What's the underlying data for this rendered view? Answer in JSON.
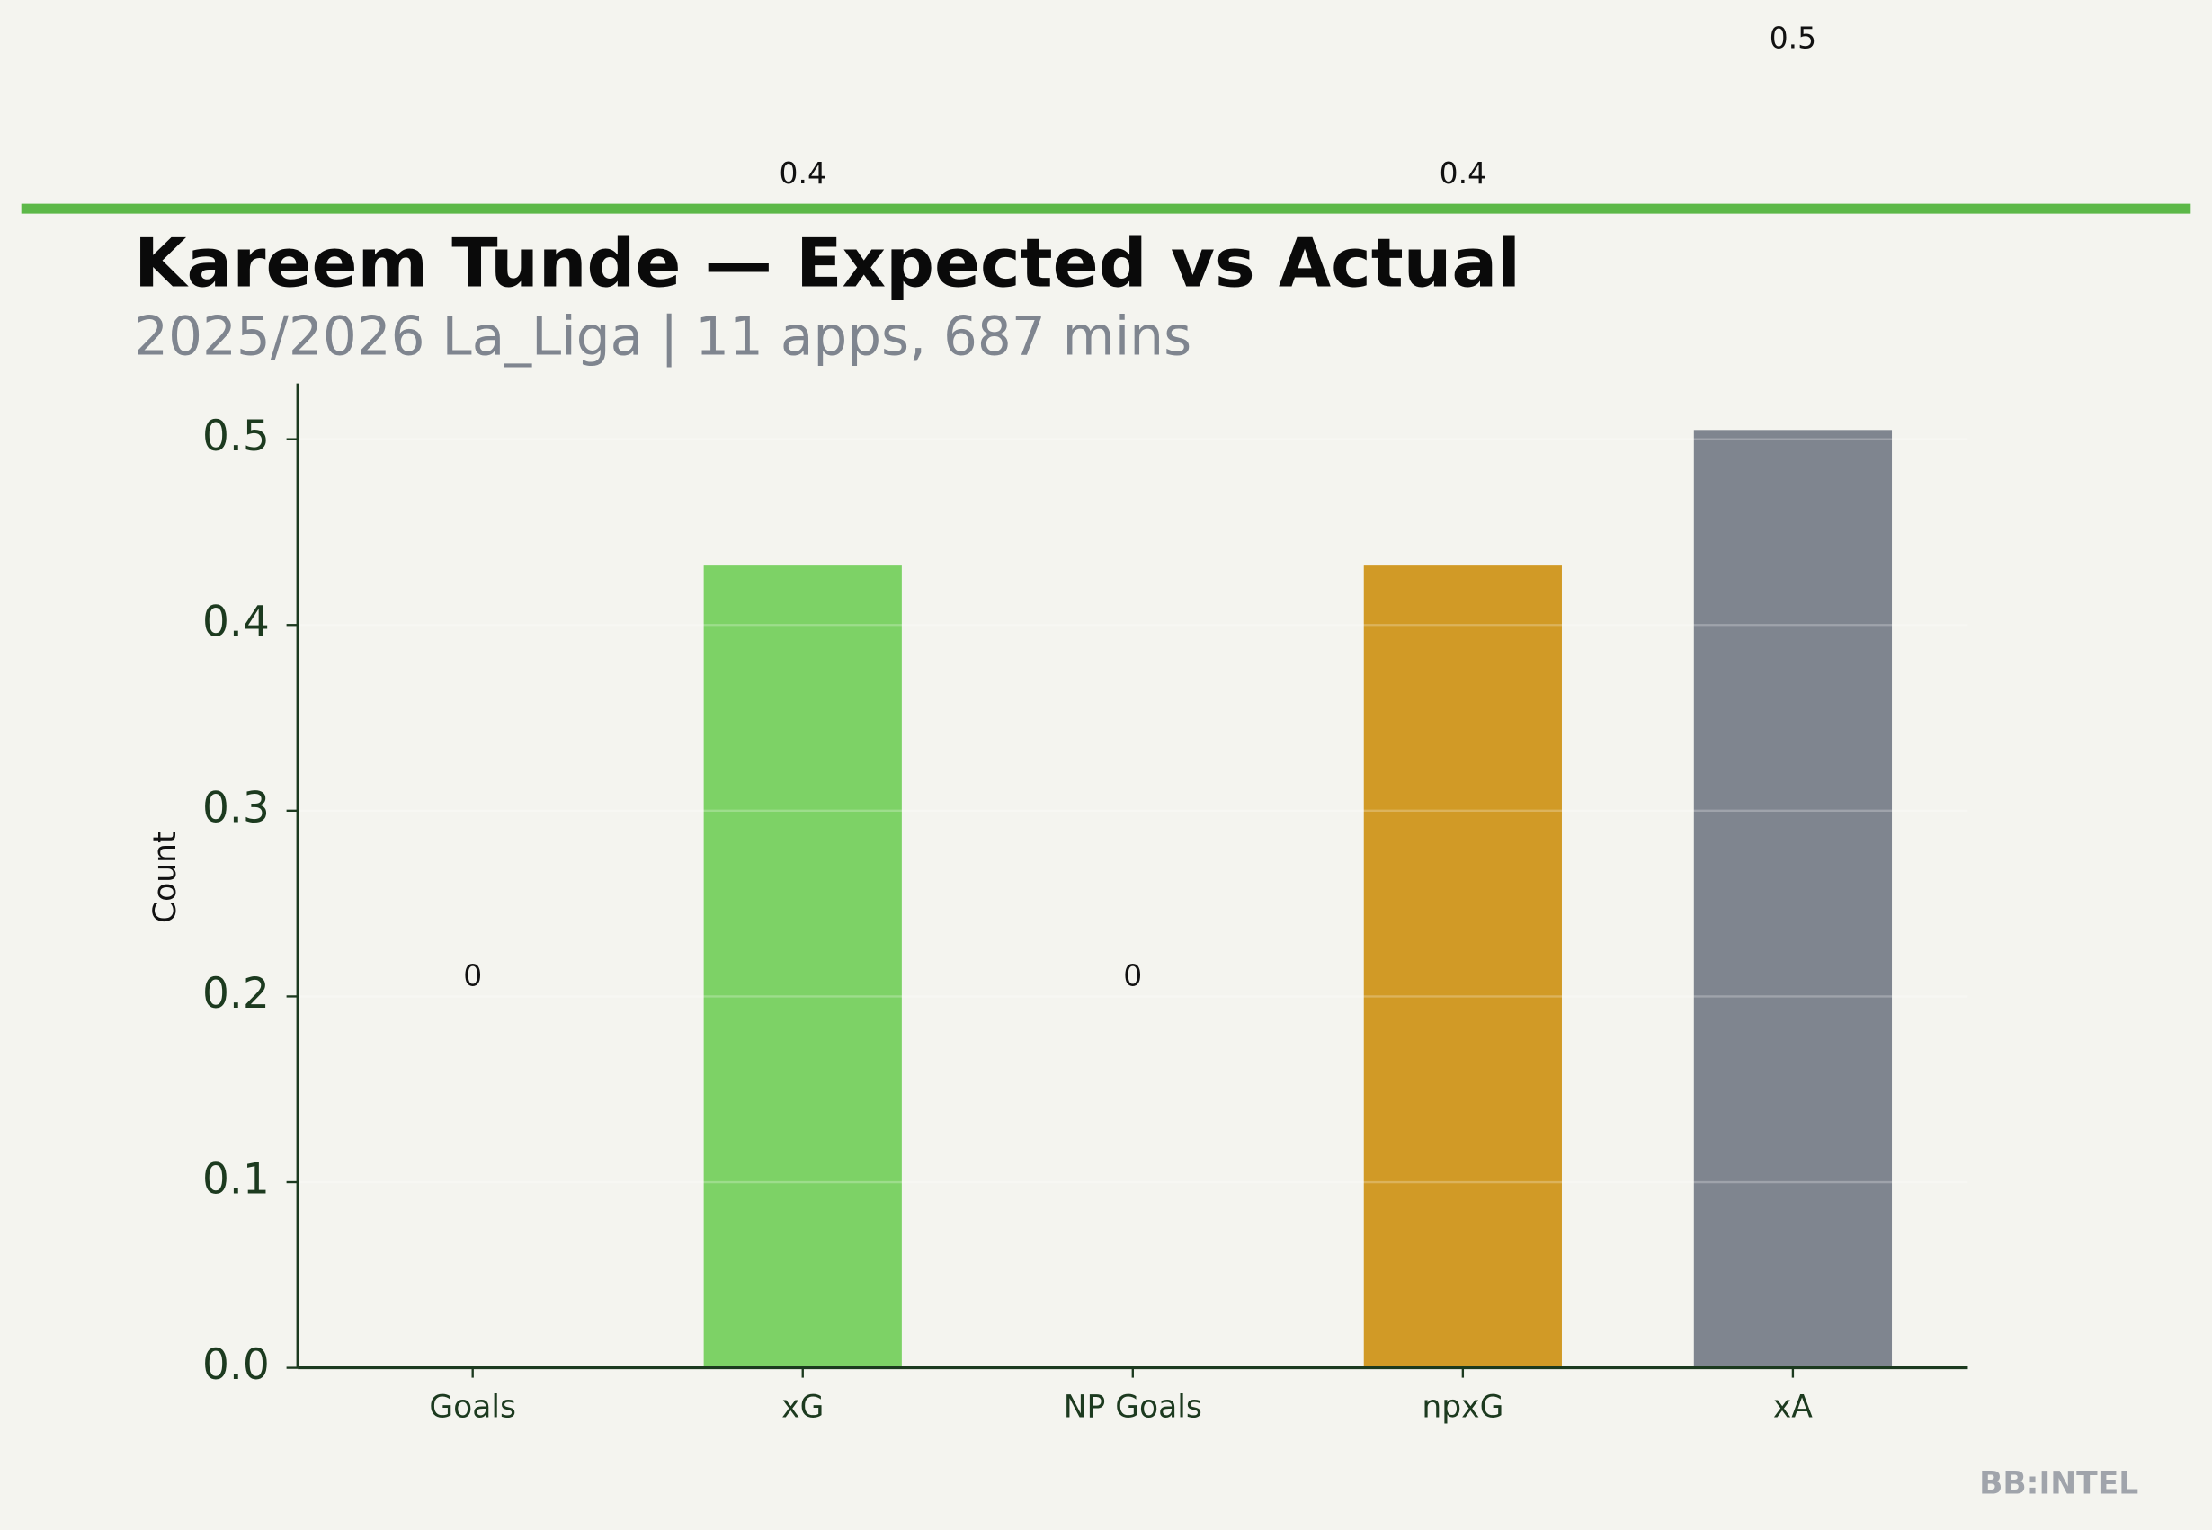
{
  "chart_data": {
    "type": "bar",
    "title": "Kareem Tunde — Expected vs Actual",
    "subtitle": "2025/2026 La_Liga | 11 apps, 687 mins",
    "y_label": "Count",
    "categories": [
      "Goals",
      "xG",
      "NP Goals",
      "npxG",
      "xA"
    ],
    "values": [
      0,
      0.432,
      0,
      0.432,
      0.505
    ],
    "value_labels": [
      "0",
      "0.4",
      "0",
      "0.4",
      "0.5"
    ],
    "colors": [
      "#5cb848",
      "#7dd266",
      "#5cb848",
      "#d19a26",
      "#7f858f"
    ],
    "ylim": [
      0,
      0.53
    ],
    "yticks": [
      {
        "value": 0,
        "label": "0.0"
      },
      0.1,
      0.2,
      0.3,
      0.4,
      0.5
    ],
    "grid": true,
    "watermark": "BB:INTEL"
  }
}
